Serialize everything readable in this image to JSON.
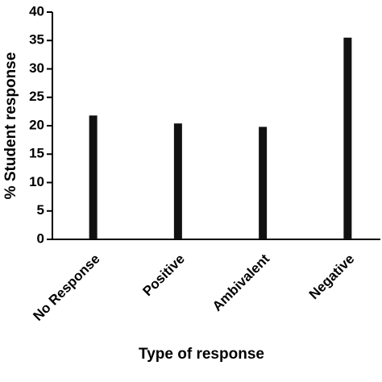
{
  "chart_data": {
    "type": "bar",
    "x_label": "Type of response",
    "y_label": "% Student response",
    "categories": [
      "No Response",
      "Positive",
      "Ambivalent",
      "Negative"
    ],
    "values": [
      21.8,
      20.4,
      19.8,
      35.5
    ],
    "color": "#111111",
    "ylim": [
      0,
      40
    ],
    "yticks": [
      0,
      5,
      10,
      15,
      20,
      25,
      30,
      35,
      40
    ],
    "grid": false
  }
}
